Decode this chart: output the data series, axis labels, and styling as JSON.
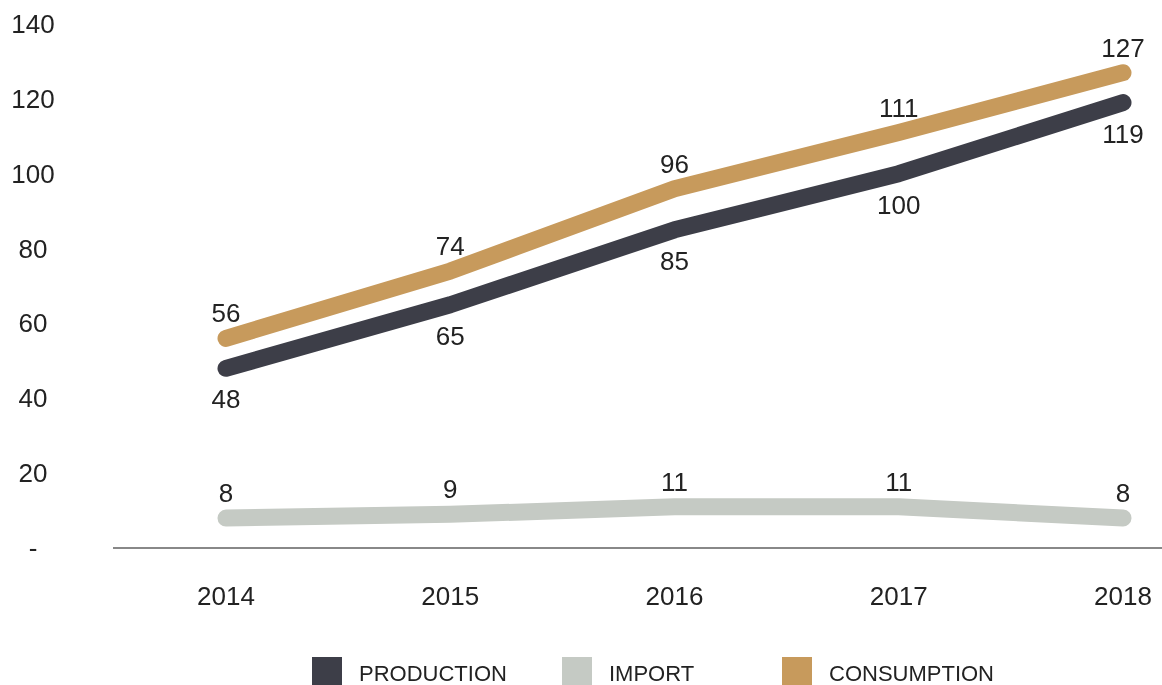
{
  "chart_data": {
    "type": "line",
    "categories": [
      "2014",
      "2015",
      "2016",
      "2017",
      "2018"
    ],
    "series": [
      {
        "name": "PRODUCTION",
        "color": "#3d3e48",
        "values": [
          48,
          65,
          85,
          100,
          119
        ]
      },
      {
        "name": "IMPORT",
        "color": "#c5cac4",
        "values": [
          8,
          9,
          11,
          11,
          8
        ]
      },
      {
        "name": "CONSUMPTION",
        "color": "#c79a5c",
        "values": [
          56,
          74,
          96,
          111,
          127
        ]
      }
    ],
    "ylim": [
      0,
      140
    ],
    "yticks": [
      {
        "value": 0,
        "label": "-"
      },
      20,
      40,
      60,
      80,
      100,
      120,
      140
    ],
    "grid": false,
    "legend": "bottom",
    "data_labels": true,
    "marker": "none",
    "line_style": "solid"
  }
}
